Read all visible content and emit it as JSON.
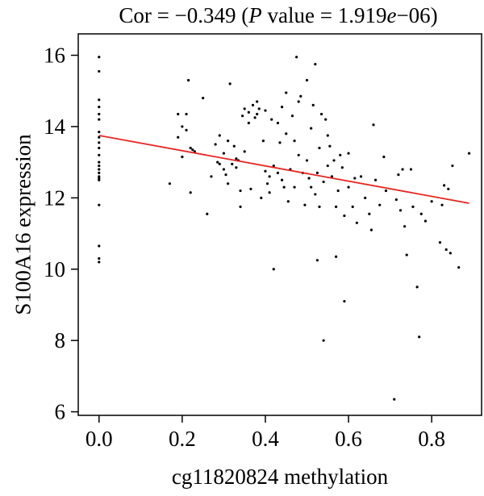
{
  "chart_data": {
    "type": "scatter",
    "title": {
      "pre": "Cor = −0.349 (",
      "p_letter": "P",
      "mid": " value = 1.919",
      "e_letter": "e",
      "post": "−06)"
    },
    "xlabel": "cg11820824 methylation",
    "ylabel": "S100A16 expression",
    "xlim": [
      -0.05,
      0.92
    ],
    "ylim": [
      5.9,
      16.6
    ],
    "x_ticks": [
      0.0,
      0.2,
      0.4,
      0.6,
      0.8
    ],
    "x_tick_labels": [
      "0.0",
      "0.2",
      "0.4",
      "0.6",
      "0.8"
    ],
    "y_ticks": [
      6,
      8,
      10,
      12,
      14,
      16
    ],
    "y_tick_labels": [
      "6",
      "8",
      "10",
      "12",
      "14",
      "16"
    ],
    "grid": false,
    "regression_line": {
      "x": [
        0.0,
        0.89
      ],
      "y": [
        13.75,
        11.85
      ],
      "color": "#e8231f"
    },
    "point_color": "#000000",
    "points": [
      [
        0.0,
        15.95
      ],
      [
        0.0,
        15.55
      ],
      [
        0.0,
        14.75
      ],
      [
        0.0,
        14.55
      ],
      [
        0.0,
        14.35
      ],
      [
        0.0,
        14.2
      ],
      [
        0.0,
        13.85
      ],
      [
        0.0,
        13.7
      ],
      [
        0.0,
        13.55
      ],
      [
        0.0,
        13.4
      ],
      [
        0.0,
        13.2
      ],
      [
        0.0,
        13.0
      ],
      [
        0.0,
        12.9
      ],
      [
        0.0,
        12.8
      ],
      [
        0.0,
        12.7
      ],
      [
        0.0,
        12.6
      ],
      [
        0.0,
        12.55
      ],
      [
        0.0,
        12.5
      ],
      [
        0.0,
        11.8
      ],
      [
        0.0,
        10.65
      ],
      [
        0.0,
        10.3
      ],
      [
        0.0,
        10.2
      ],
      [
        0.17,
        12.4
      ],
      [
        0.19,
        14.35
      ],
      [
        0.19,
        13.7
      ],
      [
        0.2,
        14.0
      ],
      [
        0.2,
        13.15
      ],
      [
        0.21,
        14.35
      ],
      [
        0.21,
        13.9
      ],
      [
        0.215,
        15.3
      ],
      [
        0.22,
        13.4
      ],
      [
        0.22,
        12.15
      ],
      [
        0.225,
        13.35
      ],
      [
        0.23,
        13.3
      ],
      [
        0.25,
        14.8
      ],
      [
        0.26,
        11.55
      ],
      [
        0.27,
        12.6
      ],
      [
        0.28,
        13.5
      ],
      [
        0.285,
        13.0
      ],
      [
        0.29,
        13.75
      ],
      [
        0.29,
        12.95
      ],
      [
        0.3,
        13.25
      ],
      [
        0.3,
        12.8
      ],
      [
        0.305,
        12.65
      ],
      [
        0.31,
        12.4
      ],
      [
        0.31,
        13.6
      ],
      [
        0.315,
        15.2
      ],
      [
        0.32,
        12.95
      ],
      [
        0.325,
        13.45
      ],
      [
        0.33,
        13.1
      ],
      [
        0.33,
        12.85
      ],
      [
        0.335,
        13.05
      ],
      [
        0.34,
        11.75
      ],
      [
        0.34,
        12.2
      ],
      [
        0.345,
        14.3
      ],
      [
        0.35,
        14.5
      ],
      [
        0.35,
        13.3
      ],
      [
        0.36,
        14.4
      ],
      [
        0.36,
        14.1
      ],
      [
        0.365,
        12.25
      ],
      [
        0.37,
        14.6
      ],
      [
        0.375,
        14.25
      ],
      [
        0.38,
        14.35
      ],
      [
        0.38,
        14.7
      ],
      [
        0.385,
        14.5
      ],
      [
        0.39,
        12.0
      ],
      [
        0.395,
        13.6
      ],
      [
        0.4,
        14.45
      ],
      [
        0.4,
        12.75
      ],
      [
        0.405,
        12.4
      ],
      [
        0.41,
        12.6
      ],
      [
        0.41,
        12.15
      ],
      [
        0.415,
        14.2
      ],
      [
        0.42,
        10.0
      ],
      [
        0.42,
        12.9
      ],
      [
        0.43,
        14.1
      ],
      [
        0.43,
        12.7
      ],
      [
        0.435,
        13.55
      ],
      [
        0.44,
        14.55
      ],
      [
        0.44,
        12.5
      ],
      [
        0.445,
        12.3
      ],
      [
        0.45,
        14.95
      ],
      [
        0.45,
        13.8
      ],
      [
        0.455,
        11.9
      ],
      [
        0.46,
        12.8
      ],
      [
        0.465,
        14.3
      ],
      [
        0.47,
        13.6
      ],
      [
        0.47,
        12.3
      ],
      [
        0.475,
        15.95
      ],
      [
        0.48,
        14.7
      ],
      [
        0.48,
        13.2
      ],
      [
        0.485,
        14.85
      ],
      [
        0.49,
        12.7
      ],
      [
        0.495,
        11.8
      ],
      [
        0.5,
        15.3
      ],
      [
        0.5,
        13.05
      ],
      [
        0.505,
        12.55
      ],
      [
        0.51,
        13.95
      ],
      [
        0.51,
        12.3
      ],
      [
        0.515,
        14.6
      ],
      [
        0.52,
        15.75
      ],
      [
        0.52,
        12.1
      ],
      [
        0.525,
        10.25
      ],
      [
        0.525,
        12.7
      ],
      [
        0.53,
        11.75
      ],
      [
        0.53,
        13.4
      ],
      [
        0.535,
        14.35
      ],
      [
        0.54,
        8.0
      ],
      [
        0.54,
        12.45
      ],
      [
        0.545,
        14.2
      ],
      [
        0.55,
        13.75
      ],
      [
        0.55,
        12.9
      ],
      [
        0.555,
        13.45
      ],
      [
        0.56,
        12.6
      ],
      [
        0.565,
        13.05
      ],
      [
        0.57,
        10.35
      ],
      [
        0.57,
        11.75
      ],
      [
        0.575,
        12.2
      ],
      [
        0.58,
        13.2
      ],
      [
        0.585,
        12.85
      ],
      [
        0.59,
        9.1
      ],
      [
        0.59,
        11.5
      ],
      [
        0.6,
        13.25
      ],
      [
        0.6,
        12.3
      ],
      [
        0.61,
        11.75
      ],
      [
        0.615,
        12.55
      ],
      [
        0.62,
        11.3
      ],
      [
        0.63,
        12.6
      ],
      [
        0.64,
        12.0
      ],
      [
        0.65,
        11.55
      ],
      [
        0.655,
        11.1
      ],
      [
        0.66,
        14.05
      ],
      [
        0.665,
        12.5
      ],
      [
        0.675,
        11.8
      ],
      [
        0.685,
        13.15
      ],
      [
        0.69,
        12.2
      ],
      [
        0.71,
        6.35
      ],
      [
        0.715,
        11.95
      ],
      [
        0.72,
        12.65
      ],
      [
        0.725,
        11.65
      ],
      [
        0.73,
        12.8
      ],
      [
        0.735,
        11.2
      ],
      [
        0.74,
        10.4
      ],
      [
        0.75,
        12.8
      ],
      [
        0.755,
        11.75
      ],
      [
        0.765,
        9.5
      ],
      [
        0.77,
        8.1
      ],
      [
        0.775,
        11.55
      ],
      [
        0.785,
        11.35
      ],
      [
        0.8,
        11.9
      ],
      [
        0.82,
        10.75
      ],
      [
        0.825,
        11.8
      ],
      [
        0.83,
        12.35
      ],
      [
        0.835,
        10.55
      ],
      [
        0.84,
        12.25
      ],
      [
        0.845,
        10.45
      ],
      [
        0.85,
        12.9
      ],
      [
        0.865,
        10.05
      ],
      [
        0.89,
        13.25
      ]
    ]
  }
}
